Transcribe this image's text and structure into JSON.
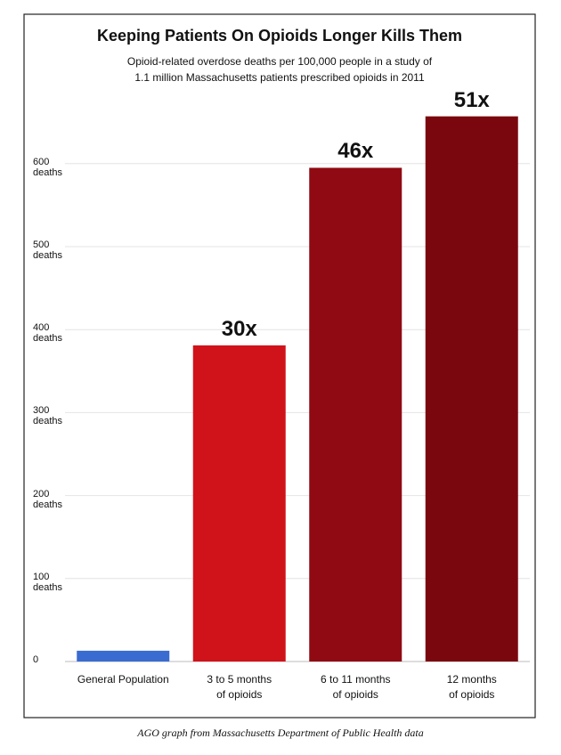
{
  "chart_data": {
    "type": "bar",
    "title": "Keeping Patients On Opioids Longer Kills Them",
    "subtitle": "Opioid-related overdose deaths per 100,000 people in a study of\n1.1 million Massachusetts patients prescribed opioids in 2011",
    "categories": [
      "General Population",
      "3 to 5 months\nof opioids",
      "6 to 11 months\nof opioids",
      "12 months\nof opioids"
    ],
    "values": [
      13,
      381,
      595,
      657
    ],
    "colors": [
      "#3a6bd0",
      "#d0121b",
      "#8f0a12",
      "#7b070e"
    ],
    "multipliers": [
      null,
      "30x",
      "46x",
      "51x"
    ],
    "ylim": [
      0,
      700
    ],
    "yticks": [
      0,
      {
        "value": 100,
        "label": "100\ndeaths"
      },
      {
        "value": 200,
        "label": "200\ndeaths"
      },
      {
        "value": 300,
        "label": "300\ndeaths"
      },
      {
        "value": 400,
        "label": "400\ndeaths"
      },
      {
        "value": 500,
        "label": "500\ndeaths"
      },
      {
        "value": 600,
        "label": "600\ndeaths"
      }
    ],
    "grid": true,
    "caption": "AGO graph from Massachusetts Department of Public Health data"
  }
}
